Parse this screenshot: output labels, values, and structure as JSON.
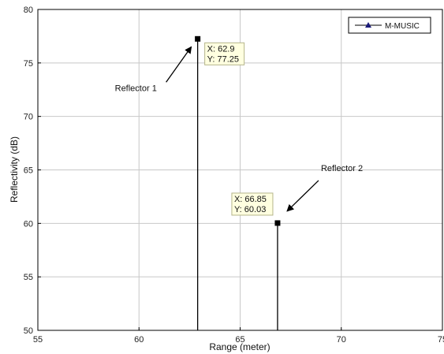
{
  "chart_data": {
    "type": "stem",
    "title": "",
    "xlabel": "Range (meter)",
    "ylabel": "Reflectivity (dB)",
    "xlim": [
      55,
      75
    ],
    "ylim": [
      50,
      80
    ],
    "xticks": [
      55,
      60,
      65,
      70,
      75
    ],
    "yticks": [
      50,
      55,
      60,
      65,
      70,
      75,
      80
    ],
    "grid": true,
    "legend": {
      "position": "top-right",
      "entries": [
        "M-MUSIC"
      ]
    },
    "series": [
      {
        "name": "M-MUSIC",
        "x": [
          62.9,
          66.85
        ],
        "y": [
          77.25,
          60.03
        ],
        "color": "#000000",
        "marker_color": "#1a1a7a"
      }
    ],
    "datatips": [
      {
        "x_label": "X: 62.9",
        "y_label": "Y: 77.25",
        "x": 62.9,
        "y": 77.25
      },
      {
        "x_label": "X: 66.85",
        "y_label": "Y: 60.03",
        "x": 66.85,
        "y": 60.03
      }
    ],
    "annotations": [
      {
        "text": "Reflector 1",
        "target_x": 62.9,
        "target_y": 77.25
      },
      {
        "text": "Reflector 2",
        "target_x": 66.85,
        "target_y": 60.03
      }
    ]
  }
}
